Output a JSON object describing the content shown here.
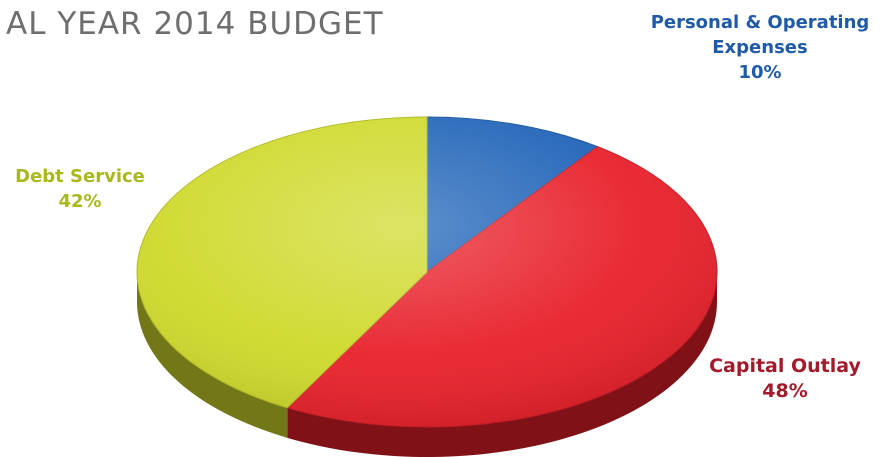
{
  "chart_data": {
    "type": "pie",
    "title": "AL YEAR 2014 BUDGET",
    "unit": "%",
    "slices": [
      {
        "label": "Personal & Operating Expenses",
        "label_lines": [
          "Personal & Operating",
          "Expenses"
        ],
        "value": 10,
        "value_label": "10%",
        "color": "#1f63b8"
      },
      {
        "label": "Capital Outlay",
        "label_lines": [
          "Capital Outlay"
        ],
        "value": 48,
        "value_label": "48%",
        "color": "#e8202a"
      },
      {
        "label": "Debt Service",
        "label_lines": [
          "Debt Service"
        ],
        "value": 42,
        "value_label": "42%",
        "color": "#cfd92a"
      }
    ],
    "label_colors": [
      "#1f5aa8",
      "#a31a2a",
      "#a9b81c"
    ],
    "style": "3d",
    "legend": "none"
  }
}
